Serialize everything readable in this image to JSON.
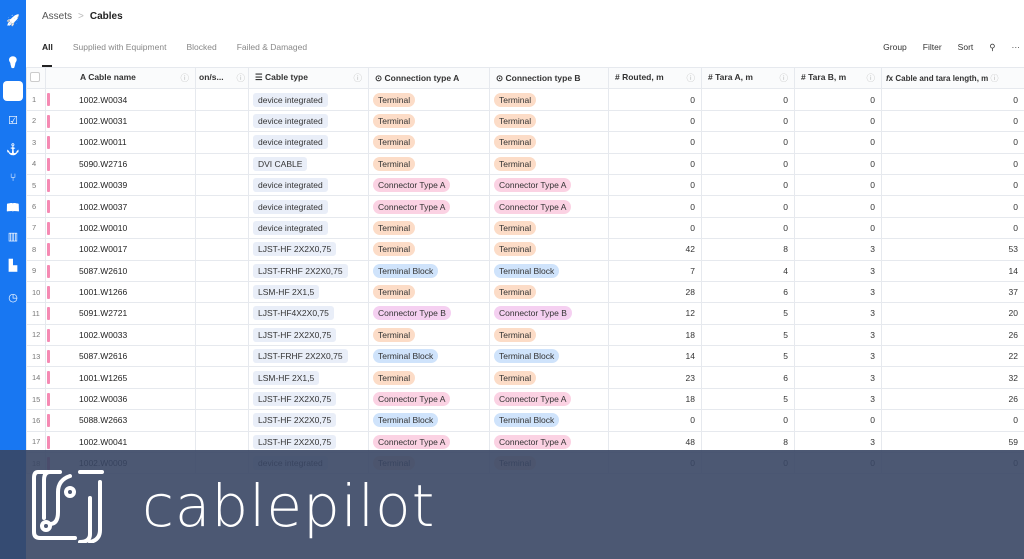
{
  "sidebar": {
    "icons": [
      "rocket-icon",
      "lightbulb-icon",
      "sitemap-icon",
      "checkbox-icon",
      "anchor-icon",
      "branch-icon",
      "book-icon",
      "barcode-icon",
      "chart-icon",
      "clock-icon"
    ],
    "accent": "#1877f2"
  },
  "breadcrumb": {
    "parent": "Assets",
    "separator": ">",
    "current": "Cables"
  },
  "tabs": [
    "All",
    "Supplied with Equipment",
    "Blocked",
    "Failed & Damaged"
  ],
  "toolbar": {
    "group": "Group",
    "filter": "Filter",
    "sort": "Sort",
    "more": "···"
  },
  "columns": {
    "name": "Cable name",
    "partial": "on/s...",
    "type": "Cable type",
    "conn_a": "Connection type A",
    "conn_b": "Connection type B",
    "routed": "Routed, m",
    "tara_a": "Tara A, m",
    "tara_b": "Tara B, m",
    "total": "Cable and tara length, m"
  },
  "pill_colors": {
    "Terminal": "#fcdcc7",
    "Connector Type A": "#fbd2e3",
    "Terminal Block": "#cfe3fb",
    "Connector Type B": "#f5d0f1"
  },
  "rows": [
    [
      "1",
      "1002.W0034",
      "device integrated",
      "Terminal",
      "Terminal",
      "0",
      "0",
      "0",
      "0"
    ],
    [
      "2",
      "1002.W0031",
      "device integrated",
      "Terminal",
      "Terminal",
      "0",
      "0",
      "0",
      "0"
    ],
    [
      "3",
      "1002.W0011",
      "device integrated",
      "Terminal",
      "Terminal",
      "0",
      "0",
      "0",
      "0"
    ],
    [
      "4",
      "5090.W2716",
      "DVI CABLE",
      "Terminal",
      "Terminal",
      "0",
      "0",
      "0",
      "0"
    ],
    [
      "5",
      "1002.W0039",
      "device integrated",
      "Connector Type A",
      "Connector Type A",
      "0",
      "0",
      "0",
      "0"
    ],
    [
      "6",
      "1002.W0037",
      "device integrated",
      "Connector Type A",
      "Connector Type A",
      "0",
      "0",
      "0",
      "0"
    ],
    [
      "7",
      "1002.W0010",
      "device integrated",
      "Terminal",
      "Terminal",
      "0",
      "0",
      "0",
      "0"
    ],
    [
      "8",
      "1002.W0017",
      "LJST-HF 2X2X0,75",
      "Terminal",
      "Terminal",
      "42",
      "8",
      "3",
      "53"
    ],
    [
      "9",
      "5087.W2610",
      "LJST-FRHF 2X2X0,75",
      "Terminal Block",
      "Terminal Block",
      "7",
      "4",
      "3",
      "14"
    ],
    [
      "10",
      "1001.W1266",
      "LSM-HF 2X1,5",
      "Terminal",
      "Terminal",
      "28",
      "6",
      "3",
      "37"
    ],
    [
      "11",
      "5091.W2721",
      "LJST-HF4X2X0,75",
      "Connector Type B",
      "Connector Type B",
      "12",
      "5",
      "3",
      "20"
    ],
    [
      "12",
      "1002.W0033",
      "LJST-HF 2X2X0,75",
      "Terminal",
      "Terminal",
      "18",
      "5",
      "3",
      "26"
    ],
    [
      "13",
      "5087.W2616",
      "LJST-FRHF 2X2X0,75",
      "Terminal Block",
      "Terminal Block",
      "14",
      "5",
      "3",
      "22"
    ],
    [
      "14",
      "1001.W1265",
      "LSM-HF 2X1,5",
      "Terminal",
      "Terminal",
      "23",
      "6",
      "3",
      "32"
    ],
    [
      "15",
      "1002.W0036",
      "LJST-HF 2X2X0,75",
      "Connector Type A",
      "Connector Type A",
      "18",
      "5",
      "3",
      "26"
    ],
    [
      "16",
      "5088.W2663",
      "LJST-HF 2X2X0,75",
      "Terminal Block",
      "Terminal Block",
      "0",
      "0",
      "0",
      "0"
    ],
    [
      "17",
      "1002.W0041",
      "LJST-HF 2X2X0,75",
      "Connector Type A",
      "Connector Type A",
      "48",
      "8",
      "3",
      "59"
    ],
    [
      "18",
      "1002.W0009",
      "device integrated",
      "Terminal",
      "Terminal",
      "0",
      "0",
      "0",
      "0"
    ]
  ],
  "banner": {
    "logo_text": "cablepilot",
    "overlay_color": "#394664"
  }
}
